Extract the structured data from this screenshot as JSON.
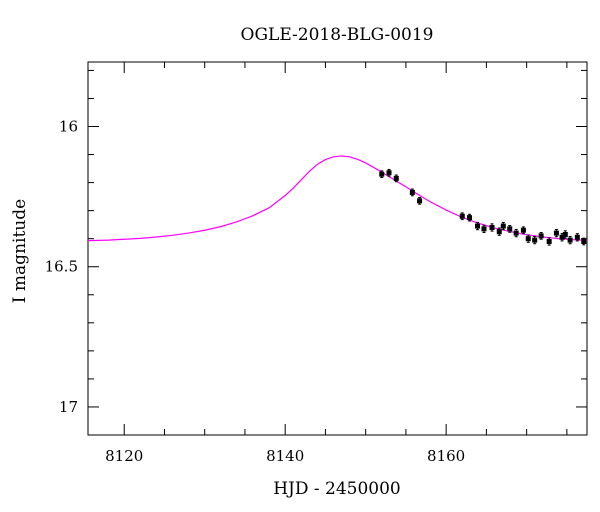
{
  "chart_data": {
    "type": "scatter",
    "title": "OGLE-2018-BLG-0019",
    "xlabel": "HJD - 2450000",
    "ylabel": "I magnitude",
    "xlim": [
      8115.5,
      8177.5
    ],
    "ylim": [
      17.1,
      15.77
    ],
    "y_inverted": true,
    "grid": false,
    "x_ticks": [
      {
        "value": 8120,
        "label": "8120"
      },
      {
        "value": 8140,
        "label": "8140"
      },
      {
        "value": 8160,
        "label": "8160"
      }
    ],
    "y_ticks": [
      {
        "value": 16,
        "label": "16"
      },
      {
        "value": 16.5,
        "label": "16.5"
      },
      {
        "value": 17,
        "label": "17"
      }
    ],
    "model_color": "#ff00ff",
    "point_color": "#000000",
    "series": [
      {
        "type": "line",
        "color": "#ff00ff",
        "x": [
          8115.5,
          8118,
          8120,
          8122,
          8124,
          8126,
          8128,
          8130,
          8132,
          8134,
          8136,
          8138,
          8140,
          8141,
          8142,
          8143,
          8144,
          8145,
          8146,
          8147,
          8148,
          8149,
          8150,
          8151,
          8152,
          8153,
          8154,
          8155,
          8156,
          8157,
          8158,
          8160,
          8162,
          8164,
          8166,
          8168,
          8170,
          8172,
          8174,
          8176,
          8177.5
        ],
        "y": [
          16.407,
          16.405,
          16.402,
          16.399,
          16.394,
          16.388,
          16.38,
          16.37,
          16.357,
          16.34,
          16.318,
          16.29,
          16.246,
          16.22,
          16.19,
          16.16,
          16.135,
          16.118,
          16.108,
          16.105,
          16.108,
          16.117,
          16.13,
          16.146,
          16.163,
          16.18,
          16.198,
          16.215,
          16.233,
          16.251,
          16.268,
          16.298,
          16.324,
          16.345,
          16.362,
          16.375,
          16.386,
          16.394,
          16.4,
          16.404,
          16.406
        ]
      },
      {
        "type": "scatter",
        "color": "#000000",
        "x": [
          8152.0,
          8152.9,
          8153.8,
          8155.8,
          8156.7,
          8162.0,
          8162.9,
          8163.9,
          8164.7,
          8165.7,
          8166.6,
          8167.1,
          8167.9,
          8168.7,
          8169.6,
          8170.2,
          8171.0,
          8171.8,
          8172.8,
          8173.7,
          8174.4,
          8174.8,
          8175.4,
          8176.3,
          8177.1
        ],
        "y": [
          16.17,
          16.165,
          16.185,
          16.235,
          16.265,
          16.32,
          16.325,
          16.355,
          16.365,
          16.36,
          16.375,
          16.355,
          16.365,
          16.38,
          16.37,
          16.4,
          16.405,
          16.39,
          16.41,
          16.38,
          16.395,
          16.385,
          16.405,
          16.395,
          16.41
        ],
        "err": [
          0.012,
          0.012,
          0.012,
          0.012,
          0.012,
          0.012,
          0.012,
          0.013,
          0.013,
          0.013,
          0.013,
          0.013,
          0.012,
          0.013,
          0.012,
          0.013,
          0.013,
          0.012,
          0.013,
          0.013,
          0.013,
          0.013,
          0.013,
          0.013,
          0.012
        ]
      }
    ]
  }
}
